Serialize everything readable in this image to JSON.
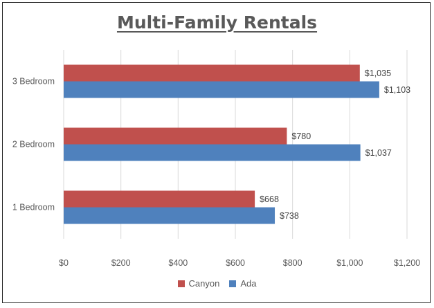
{
  "chart_data": {
    "type": "bar",
    "orientation": "horizontal",
    "title": "Multi-Family Rentals",
    "categories": [
      "1 Bedroom",
      "2 Bedroom",
      "3 Bedroom"
    ],
    "series": [
      {
        "name": "Canyon",
        "color": "#C0504D",
        "values": [
          668,
          780,
          1035
        ],
        "labels": [
          "$668",
          "$780",
          "$1,035"
        ]
      },
      {
        "name": "Ada",
        "color": "#4F81BD",
        "values": [
          738,
          1037,
          1103
        ],
        "labels": [
          "$738",
          "$1,037",
          "$1,103"
        ]
      }
    ],
    "xlim": [
      0,
      1200
    ],
    "xticks": [
      0,
      200,
      400,
      600,
      800,
      1000,
      1200
    ],
    "xtick_labels": [
      "$0",
      "$200",
      "$400",
      "$600",
      "$800",
      "$1,000",
      "$1,200"
    ],
    "grid": true,
    "legend_position": "bottom"
  }
}
